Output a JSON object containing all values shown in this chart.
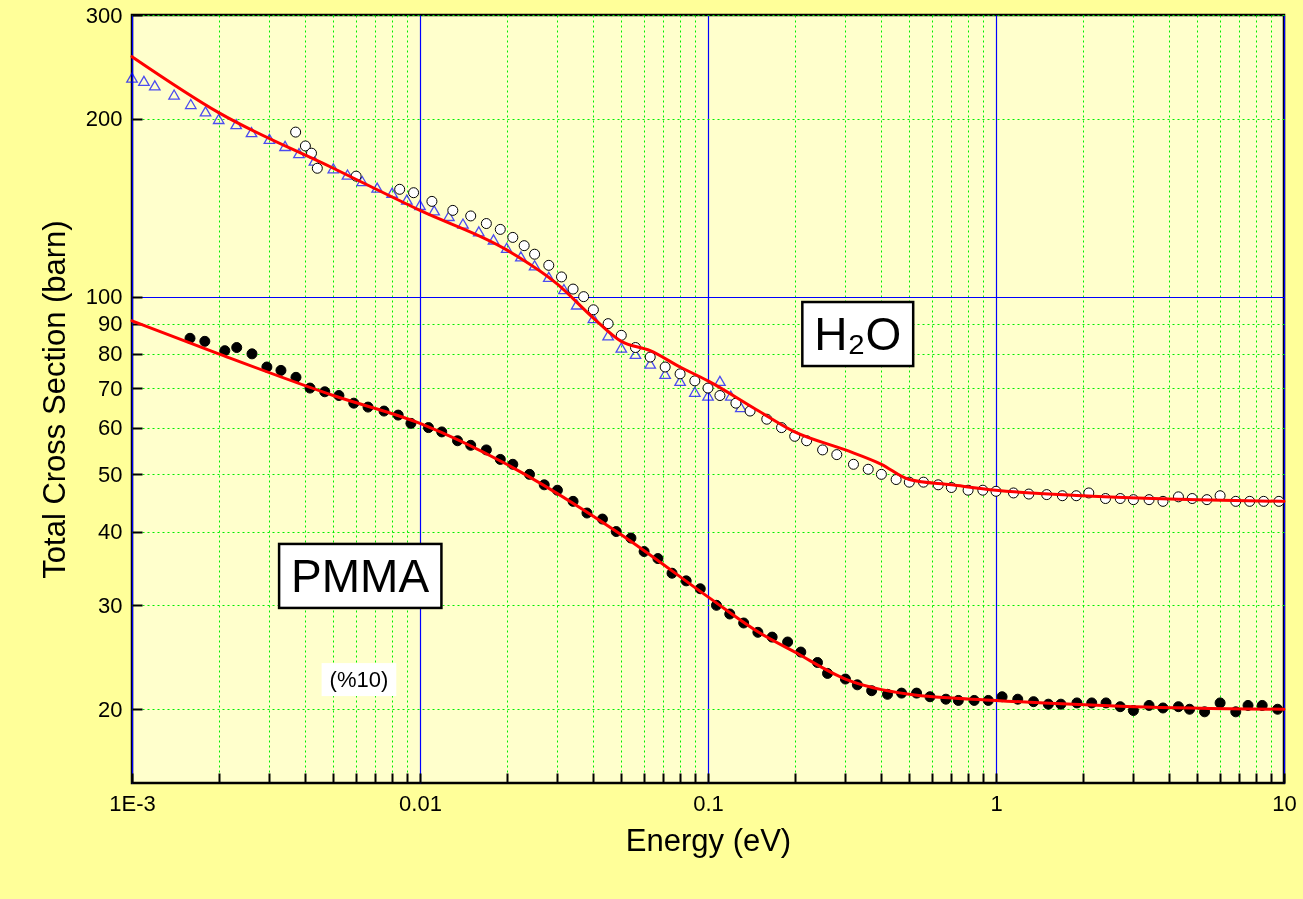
{
  "chart_data": {
    "type": "scatter",
    "xlabel": "Energy (eV)",
    "ylabel": "Total Cross Section (barn)",
    "log": "xy",
    "grid": true,
    "xlim": [
      0.001,
      10
    ],
    "ylim": [
      15,
      300
    ],
    "xticks": [
      {
        "value": 0.001,
        "label": "1E-3"
      },
      {
        "value": 0.002,
        "label": null
      },
      {
        "value": 0.003,
        "label": null
      },
      {
        "value": 0.004,
        "label": null
      },
      {
        "value": 0.005,
        "label": null
      },
      {
        "value": 0.006,
        "label": null
      },
      {
        "value": 0.007,
        "label": null
      },
      {
        "value": 0.008,
        "label": null
      },
      {
        "value": 0.009,
        "label": null
      },
      0.01,
      {
        "value": 0.02,
        "label": null
      },
      {
        "value": 0.03,
        "label": null
      },
      {
        "value": 0.04,
        "label": null
      },
      {
        "value": 0.05,
        "label": null
      },
      {
        "value": 0.06,
        "label": null
      },
      {
        "value": 0.07,
        "label": null
      },
      {
        "value": 0.08,
        "label": null
      },
      {
        "value": 0.09,
        "label": null
      },
      0.1,
      {
        "value": 0.2,
        "label": null
      },
      {
        "value": 0.3,
        "label": null
      },
      {
        "value": 0.4,
        "label": null
      },
      {
        "value": 0.5,
        "label": null
      },
      {
        "value": 0.6,
        "label": null
      },
      {
        "value": 0.7,
        "label": null
      },
      {
        "value": 0.8,
        "label": null
      },
      {
        "value": 0.9,
        "label": null
      },
      1,
      {
        "value": 2,
        "label": null
      },
      {
        "value": 3,
        "label": null
      },
      {
        "value": 4,
        "label": null
      },
      {
        "value": 5,
        "label": null
      },
      {
        "value": 6,
        "label": null
      },
      {
        "value": 7,
        "label": null
      },
      {
        "value": 8,
        "label": null
      },
      {
        "value": 9,
        "label": null
      },
      10
    ],
    "yticks": [
      20,
      30,
      40,
      50,
      60,
      70,
      80,
      90,
      100,
      200,
      300
    ],
    "series": [
      {
        "type": "line",
        "color": "#ff0000",
        "x": [
          0.001,
          0.002,
          0.005,
          0.01,
          0.02,
          0.03,
          0.04,
          0.05,
          0.063,
          0.08,
          0.1,
          0.15,
          0.2,
          0.3,
          0.4,
          0.5,
          0.7,
          1,
          2,
          5,
          10
        ],
        "values": [
          255,
          205,
          165,
          140,
          120,
          105,
          92,
          84,
          81,
          76,
          72,
          64,
          59,
          55,
          52,
          49,
          48,
          47,
          46,
          45.3,
          45
        ]
      },
      {
        "type": "line",
        "color": "#ff0000",
        "x": [
          0.001,
          0.002,
          0.005,
          0.01,
          0.02,
          0.05,
          0.1,
          0.15,
          0.2,
          0.3,
          0.5,
          1,
          3,
          10
        ],
        "values": [
          91,
          80,
          68,
          61,
          52,
          39.5,
          31,
          27,
          25,
          22.5,
          21.2,
          20.7,
          20.2,
          20
        ]
      },
      {
        "marker": "triangle",
        "color": "#0000ff",
        "x": [
          0.001,
          0.0011,
          0.0012,
          0.0014,
          0.0016,
          0.0018,
          0.002,
          0.0023,
          0.0026,
          0.003,
          0.0034,
          0.0038,
          0.0043,
          0.005,
          0.0056,
          0.0063,
          0.0071,
          0.008,
          0.009,
          0.01,
          0.0112,
          0.0126,
          0.0141,
          0.016,
          0.018,
          0.02,
          0.0224,
          0.025,
          0.028,
          0.0316,
          0.035,
          0.04,
          0.045,
          0.05,
          0.056,
          0.063,
          0.071,
          0.08,
          0.09,
          0.1,
          0.11,
          0.12,
          0.13
        ],
        "values": [
          235,
          232,
          228,
          220,
          212,
          206,
          200,
          196,
          190,
          185,
          180,
          175,
          170,
          165,
          161,
          157,
          153,
          150,
          146,
          143,
          140,
          137,
          133,
          129,
          125,
          121,
          117,
          113,
          108,
          103,
          97,
          92,
          86,
          82,
          80,
          77,
          74,
          72,
          69,
          68,
          72,
          68,
          65
        ]
      },
      {
        "marker": "circle",
        "color": "#ffffff",
        "x": [
          0.0037,
          0.004,
          0.0042,
          0.0044,
          0.006,
          0.0085,
          0.0095,
          0.011,
          0.013,
          0.015,
          0.017,
          0.019,
          0.021,
          0.023,
          0.025,
          0.028,
          0.031,
          0.034,
          0.037,
          0.04,
          0.045,
          0.05,
          0.056,
          0.063,
          0.071,
          0.08,
          0.09,
          0.1,
          0.11,
          0.125,
          0.14,
          0.16,
          0.18,
          0.2,
          0.22,
          0.25,
          0.28,
          0.32,
          0.36,
          0.4,
          0.45,
          0.5,
          0.56,
          0.63,
          0.7,
          0.8,
          0.9,
          1,
          1.15,
          1.3,
          1.5,
          1.7,
          1.9,
          2.1,
          2.4,
          2.7,
          3,
          3.4,
          3.8,
          4.3,
          4.8,
          5.4,
          6,
          6.8,
          7.6,
          8.5,
          9.6
        ],
        "values": [
          190,
          180,
          175,
          165,
          160,
          152,
          150,
          145,
          140,
          137,
          133,
          130,
          126,
          122,
          118,
          113,
          108,
          103,
          100,
          95,
          90,
          86,
          82,
          79,
          76,
          74,
          72,
          70,
          68,
          66,
          64,
          62,
          60,
          58,
          57,
          55,
          54,
          52,
          51,
          50,
          49,
          48.5,
          48.5,
          48,
          47.5,
          47,
          47,
          46.8,
          46.5,
          46.3,
          46.2,
          46,
          46,
          46.5,
          45.5,
          45.5,
          45.3,
          45.3,
          45,
          45.8,
          45.5,
          45.3,
          46,
          45,
          45,
          45,
          45
        ]
      },
      {
        "marker": "circle",
        "color": "#000000",
        "x": [
          0.00159,
          0.00179,
          0.0021,
          0.00231,
          0.00261,
          0.00294,
          0.00329,
          0.00371,
          0.00415,
          0.00467,
          0.00523,
          0.00589,
          0.0066,
          0.0075,
          0.0084,
          0.0093,
          0.0107,
          0.0119,
          0.0135,
          0.015,
          0.017,
          0.019,
          0.021,
          0.024,
          0.027,
          0.03,
          0.034,
          0.038,
          0.043,
          0.048,
          0.054,
          0.06,
          0.067,
          0.075,
          0.084,
          0.094,
          0.107,
          0.119,
          0.133,
          0.149,
          0.167,
          0.189,
          0.21,
          0.24,
          0.26,
          0.3,
          0.33,
          0.37,
          0.42,
          0.47,
          0.53,
          0.59,
          0.67,
          0.74,
          0.84,
          0.94,
          1.05,
          1.19,
          1.35,
          1.52,
          1.68,
          1.91,
          2.15,
          2.41,
          2.7,
          3,
          3.4,
          3.8,
          4.3,
          4.7,
          5.3,
          6,
          6.8,
          7.5,
          8.4,
          9.5
        ],
        "values": [
          85,
          84,
          81,
          82,
          80,
          76,
          75,
          73,
          70,
          69,
          68,
          66,
          65,
          64,
          63,
          61,
          60,
          59,
          57,
          56,
          55,
          53,
          52,
          50,
          48,
          47,
          45,
          43,
          42,
          40,
          39,
          37,
          36,
          34,
          33,
          32,
          30,
          29,
          28,
          27,
          26.5,
          26,
          25,
          24,
          23,
          22.5,
          22,
          21.5,
          21.2,
          21.3,
          21.3,
          21,
          20.8,
          20.7,
          20.7,
          20.7,
          21,
          20.8,
          20.6,
          20.4,
          20.4,
          20.5,
          20.5,
          20.5,
          20.2,
          19.9,
          20.3,
          20.1,
          20.2,
          20,
          19.8,
          20.5,
          19.8,
          20.3,
          20.3,
          20
        ]
      }
    ],
    "annotations": [
      "H₂O",
      "PMMA",
      "(%10)"
    ]
  }
}
